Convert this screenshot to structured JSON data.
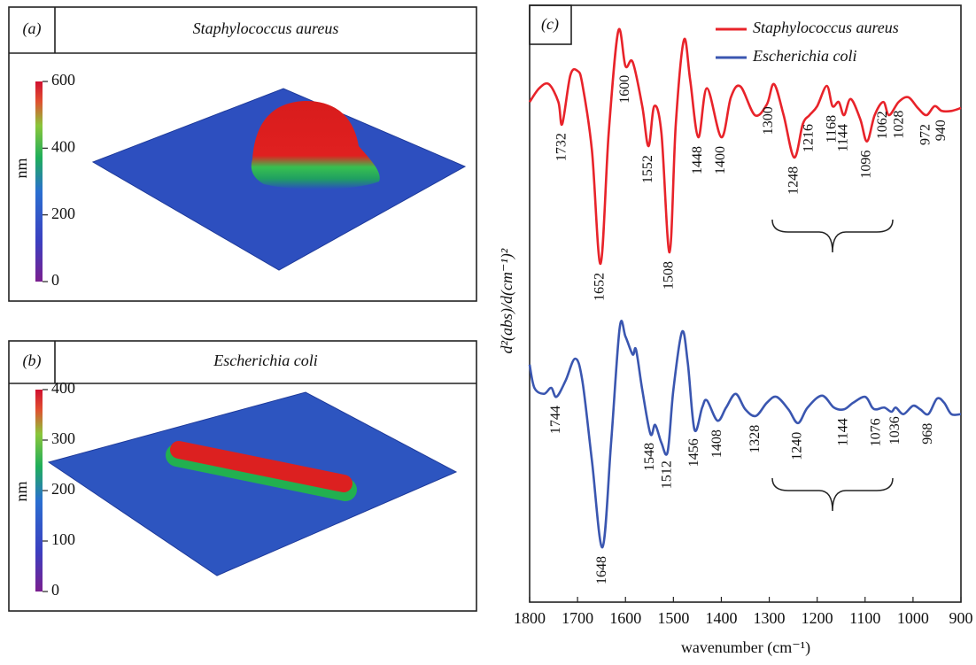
{
  "chart_data": [
    {
      "type": "surface",
      "label": "(a)",
      "title": "Staphylococcus aureus",
      "colorbar": {
        "label": "nm",
        "lim": [
          0,
          600
        ],
        "ticks": [
          0,
          200,
          400,
          600
        ]
      }
    },
    {
      "type": "surface",
      "label": "(b)",
      "title": "Escherichia coli",
      "colorbar": {
        "label": "nm",
        "lim": [
          0,
          400
        ],
        "ticks": [
          0,
          100,
          200,
          300,
          400
        ]
      }
    },
    {
      "type": "line",
      "label": "(c)",
      "xlabel": "wavenumber (cm⁻¹)",
      "ylabel": "d²(abs)/d(cm⁻¹)²",
      "xlim": [
        1800,
        900
      ],
      "xticks": [
        1800,
        1700,
        1600,
        1500,
        1400,
        1300,
        1200,
        1100,
        1000,
        900
      ],
      "ylim": [
        0,
        100
      ],
      "series": [
        {
          "name": "Staphylococcus aureus",
          "color": "#e8232a",
          "x": [
            1800,
            1780,
            1760,
            1740,
            1732,
            1715,
            1700,
            1690,
            1670,
            1652,
            1635,
            1615,
            1600,
            1585,
            1565,
            1552,
            1540,
            1525,
            1508,
            1495,
            1478,
            1465,
            1448,
            1430,
            1400,
            1380,
            1360,
            1330,
            1305,
            1290,
            1270,
            1248,
            1230,
            1216,
            1200,
            1180,
            1168,
            1155,
            1144,
            1130,
            1110,
            1096,
            1080,
            1062,
            1050,
            1030,
            1010,
            990,
            972,
            955,
            940,
            920,
            900
          ],
          "values": [
            83.8,
            86.1,
            86.8,
            83.8,
            80.1,
            88.3,
            89.0,
            86.8,
            75.7,
            56.7,
            78.6,
            95.7,
            89.8,
            90.5,
            83.1,
            76.4,
            83.1,
            78.6,
            58.6,
            80.1,
            94.2,
            87.5,
            77.9,
            86.1,
            77.9,
            84.6,
            86.4,
            81.6,
            83.4,
            86.8,
            81.6,
            74.5,
            80.1,
            81.6,
            83.1,
            86.5,
            83.1,
            83.8,
            81.6,
            84.3,
            80.9,
            77.2,
            81.6,
            83.8,
            81.6,
            83.8,
            84.6,
            82.8,
            81.6,
            83.1,
            82.3,
            82.3,
            82.8
          ],
          "peaks": [
            1732,
            1652,
            1600,
            1552,
            1508,
            1448,
            1400,
            1300,
            1248,
            1216,
            1168,
            1144,
            1096,
            1062,
            1028,
            972,
            940
          ]
        },
        {
          "name": "Escherichia coli",
          "color": "#3a56b0",
          "x": [
            1800,
            1790,
            1770,
            1755,
            1744,
            1725,
            1705,
            1690,
            1670,
            1648,
            1630,
            1612,
            1600,
            1585,
            1578,
            1565,
            1548,
            1538,
            1525,
            1512,
            1500,
            1482,
            1470,
            1456,
            1440,
            1430,
            1408,
            1390,
            1370,
            1350,
            1328,
            1305,
            1285,
            1260,
            1240,
            1220,
            1190,
            1165,
            1144,
            1125,
            1100,
            1085,
            1076,
            1060,
            1045,
            1036,
            1020,
            1000,
            985,
            968,
            950,
            935,
            920,
            900
          ],
          "values": [
            39.8,
            35.9,
            34.9,
            35.9,
            34.4,
            37.1,
            40.8,
            37.1,
            23.7,
            9.2,
            26.7,
            46.0,
            44.5,
            41.5,
            42.3,
            35.6,
            28.2,
            29.7,
            26.7,
            25.2,
            35.6,
            45.3,
            40.1,
            28.9,
            32.6,
            33.8,
            30.4,
            32.6,
            34.9,
            32.3,
            31.2,
            33.4,
            34.4,
            32.3,
            30.0,
            32.6,
            34.6,
            32.6,
            32.3,
            33.4,
            34.4,
            32.6,
            32.3,
            32.6,
            31.9,
            32.6,
            31.5,
            32.9,
            32.3,
            31.5,
            34.1,
            33.4,
            31.5,
            31.5
          ],
          "peaks": [
            1744,
            1648,
            1548,
            1512,
            1456,
            1408,
            1328,
            1240,
            1144,
            1076,
            1036,
            968
          ]
        }
      ]
    }
  ]
}
